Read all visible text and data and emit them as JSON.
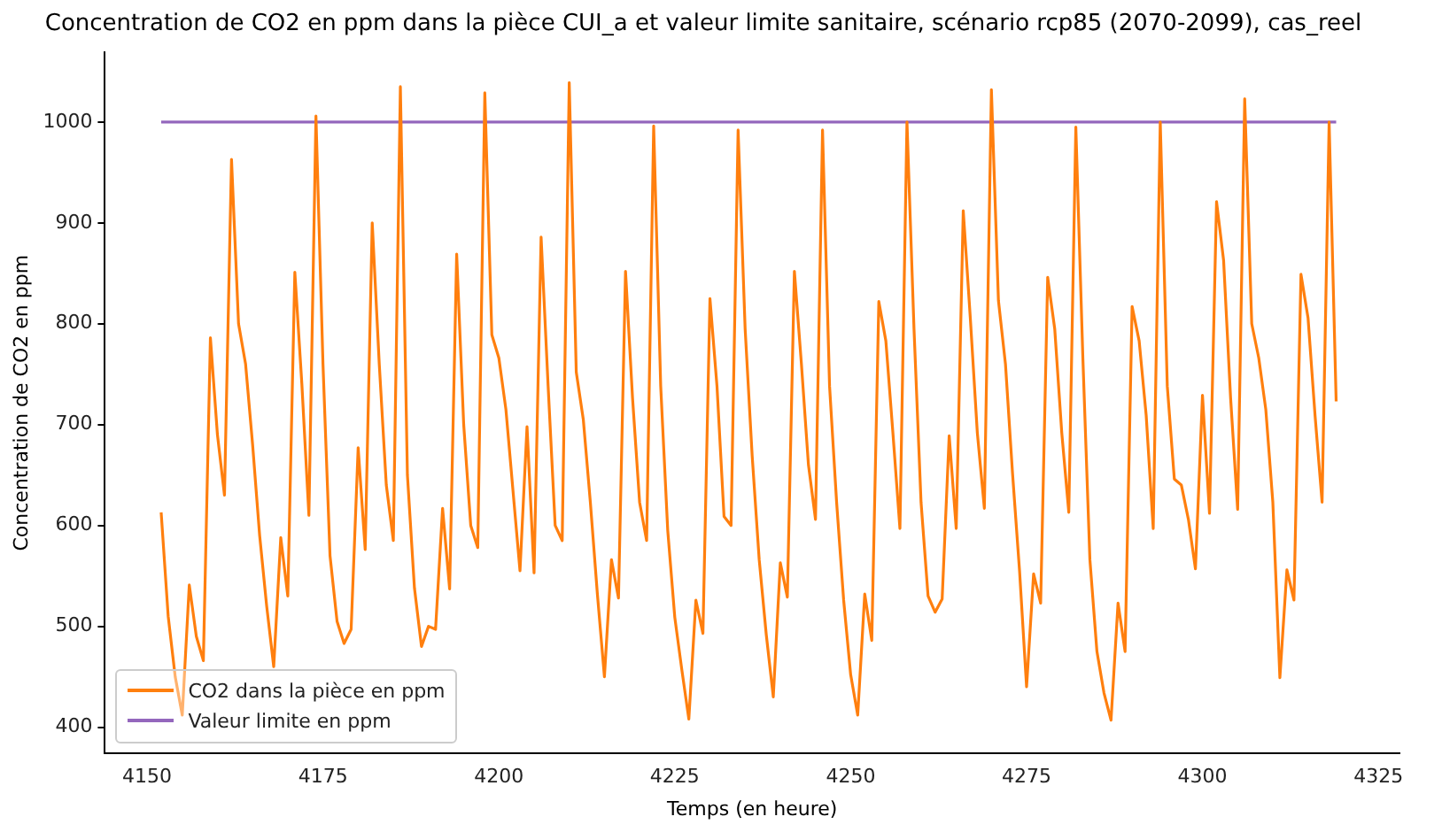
{
  "chart_data": {
    "type": "line",
    "title": "Concentration de CO2 en ppm dans la pièce CUI_a et valeur limite sanitaire, scénario rcp85 (2070-2099), cas_reel",
    "xlabel": "Temps (en heure)",
    "ylabel": "Concentration de CO2 en ppm",
    "xlim": [
      4144,
      4328
    ],
    "ylim": [
      374,
      1069
    ],
    "xticks": [
      4150,
      4175,
      4200,
      4225,
      4250,
      4275,
      4300,
      4325
    ],
    "yticks": [
      400,
      500,
      600,
      700,
      800,
      900,
      1000
    ],
    "grid": false,
    "legend": "bottom left",
    "marker": "none",
    "line_style": "solid",
    "series": [
      {
        "name": "CO2 dans la pièce en ppm",
        "color": "#ff7f0e",
        "x": [
          4152,
          4153,
          4154,
          4155,
          4156,
          4157,
          4158,
          4159,
          4160,
          4161,
          4162,
          4163,
          4164,
          4165,
          4166,
          4167,
          4168,
          4169,
          4170,
          4171,
          4172,
          4173,
          4174,
          4175,
          4176,
          4177,
          4178,
          4179,
          4180,
          4181,
          4182,
          4183,
          4184,
          4185,
          4186,
          4187,
          4188,
          4189,
          4190,
          4191,
          4192,
          4193,
          4194,
          4195,
          4196,
          4197,
          4198,
          4199,
          4200,
          4201,
          4202,
          4203,
          4204,
          4205,
          4206,
          4207,
          4208,
          4209,
          4210,
          4211,
          4212,
          4213,
          4214,
          4215,
          4216,
          4217,
          4218,
          4219,
          4220,
          4221,
          4222,
          4223,
          4224,
          4225,
          4226,
          4227,
          4228,
          4229,
          4230,
          4231,
          4232,
          4233,
          4234,
          4235,
          4236,
          4237,
          4238,
          4239,
          4240,
          4241,
          4242,
          4243,
          4244,
          4245,
          4246,
          4247,
          4248,
          4249,
          4250,
          4251,
          4252,
          4253,
          4254,
          4255,
          4256,
          4257,
          4258,
          4259,
          4260,
          4261,
          4262,
          4263,
          4264,
          4265,
          4266,
          4267,
          4268,
          4269,
          4270,
          4271,
          4272,
          4273,
          4274,
          4275,
          4276,
          4277,
          4278,
          4279,
          4280,
          4281,
          4282,
          4283,
          4284,
          4285,
          4286,
          4287,
          4288,
          4289,
          4290,
          4291,
          4292,
          4293,
          4294,
          4295,
          4296,
          4297,
          4298,
          4299,
          4300,
          4301,
          4302,
          4303,
          4304,
          4305,
          4306,
          4307,
          4308,
          4309,
          4310,
          4311,
          4312,
          4313,
          4314,
          4315,
          4316,
          4317,
          4318,
          4319
        ],
        "values": [
          613,
          510,
          450,
          412,
          541,
          490,
          466,
          786,
          690,
          630,
          963,
          800,
          760,
          680,
          590,
          520,
          460,
          588,
          530,
          851,
          740,
          610,
          1006,
          760,
          570,
          505,
          483,
          497,
          677,
          576,
          900,
          760,
          640,
          585,
          1035,
          650,
          538,
          480,
          500,
          497,
          617,
          537,
          869,
          700,
          600,
          578,
          1029,
          789,
          766,
          715,
          635,
          555,
          698,
          553,
          886,
          738,
          600,
          585,
          1039,
          752,
          705,
          623,
          532,
          450,
          566,
          528,
          852,
          726,
          623,
          585,
          996,
          738,
          595,
          509,
          457,
          408,
          526,
          493,
          825,
          738,
          609,
          600,
          992,
          795,
          669,
          566,
          492,
          430,
          563,
          529,
          852,
          760,
          660,
          606,
          992,
          738,
          623,
          526,
          452,
          412,
          532,
          486,
          822,
          783,
          692,
          597,
          1000,
          795,
          623,
          530,
          514,
          527,
          689,
          597,
          912,
          806,
          692,
          617,
          1032,
          823,
          760,
          652,
          555,
          440,
          552,
          523,
          846,
          795,
          692,
          613,
          995,
          766,
          566,
          475,
          434,
          407,
          523,
          475,
          817,
          783,
          709,
          597,
          1000,
          738,
          646,
          640,
          606,
          557,
          729,
          612,
          921,
          863,
          726,
          616,
          1023,
          800,
          766,
          715,
          623,
          449,
          556,
          526,
          849,
          806,
          709,
          623,
          1000,
          723
        ]
      },
      {
        "name": "Valeur limite en ppm",
        "color": "#9467bd",
        "x": [
          4152,
          4319
        ],
        "values": [
          1000,
          1000
        ]
      }
    ]
  }
}
